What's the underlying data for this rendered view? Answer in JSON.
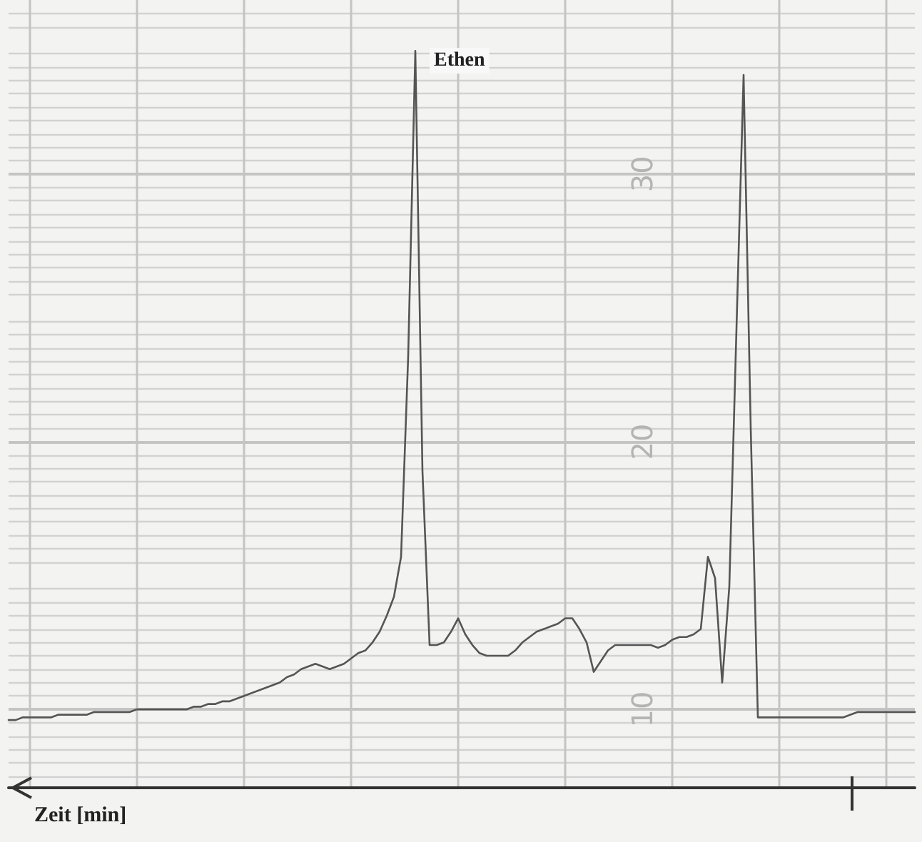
{
  "chart_data": {
    "type": "line",
    "xlabel": "Zeit [min]",
    "annotations": [
      "Ethen"
    ],
    "categories": [
      null,
      null,
      null,
      null,
      null,
      null,
      null,
      null,
      null,
      null,
      null,
      null,
      null,
      null,
      null,
      null,
      null,
      null,
      null,
      null,
      null,
      null,
      null,
      null,
      null,
      null,
      null,
      null,
      null,
      null,
      null,
      null,
      null,
      null,
      null,
      null,
      null,
      null,
      null,
      null,
      null,
      null,
      null,
      null,
      null,
      null,
      null,
      null,
      null,
      null,
      null,
      null,
      null,
      null,
      null,
      null,
      null,
      null,
      null,
      null,
      null,
      null,
      null,
      null,
      null,
      null,
      null,
      null,
      null,
      null,
      null,
      null,
      null,
      null,
      null,
      null,
      null,
      null,
      null,
      null,
      null,
      null,
      null,
      null,
      null,
      null,
      null,
      null,
      null,
      null,
      null,
      null,
      null,
      null,
      null,
      null,
      null,
      null,
      null,
      null,
      null,
      null,
      null,
      null,
      null,
      null,
      null,
      null,
      null,
      null,
      null,
      null,
      null,
      null,
      null,
      null,
      null,
      null,
      null,
      null,
      null,
      null,
      null,
      null,
      null,
      null,
      null,
      null
    ],
    "series": [
      {
        "color": "#555555",
        "values": [
          9.6,
          9.6,
          9.7,
          9.7,
          9.7,
          9.7,
          9.7,
          9.8,
          9.8,
          9.8,
          9.8,
          9.8,
          9.9,
          9.9,
          9.9,
          9.9,
          9.9,
          9.9,
          10.0,
          10.0,
          10.0,
          10.0,
          10.0,
          10.0,
          10.0,
          10.0,
          10.1,
          10.1,
          10.2,
          10.2,
          10.3,
          10.3,
          10.4,
          10.5,
          10.6,
          10.7,
          10.8,
          10.9,
          11.0,
          11.2,
          11.3,
          11.5,
          11.6,
          11.7,
          11.6,
          11.5,
          11.6,
          11.7,
          11.9,
          12.1,
          12.2,
          12.5,
          12.9,
          13.5,
          14.2,
          15.7,
          23.2,
          34.6,
          18.9,
          12.4,
          12.4,
          12.5,
          12.9,
          13.4,
          12.8,
          12.4,
          12.1,
          12.0,
          12.0,
          12.0,
          12.0,
          12.2,
          12.5,
          12.7,
          12.9,
          13.0,
          13.1,
          13.2,
          13.4,
          13.4,
          13.0,
          12.5,
          11.4,
          11.8,
          12.2,
          12.4,
          12.4,
          12.4,
          12.4,
          12.4,
          12.4,
          12.3,
          12.4,
          12.6,
          12.7,
          12.7,
          12.8,
          13.0,
          15.7,
          14.9,
          11.0,
          14.6,
          24.2,
          33.7,
          20.5,
          9.7,
          9.7,
          9.7,
          9.7,
          9.7,
          9.7,
          9.7,
          9.7,
          9.7,
          9.7,
          9.7,
          9.7,
          9.7,
          9.8,
          9.9,
          9.9,
          9.9,
          9.9,
          9.9,
          9.9,
          9.9,
          9.9,
          9.9
        ]
      }
    ],
    "ylim": [
      7.07,
      36.5
    ],
    "yticks": [
      10,
      20,
      30
    ],
    "grid": true,
    "line_style": "solid"
  }
}
